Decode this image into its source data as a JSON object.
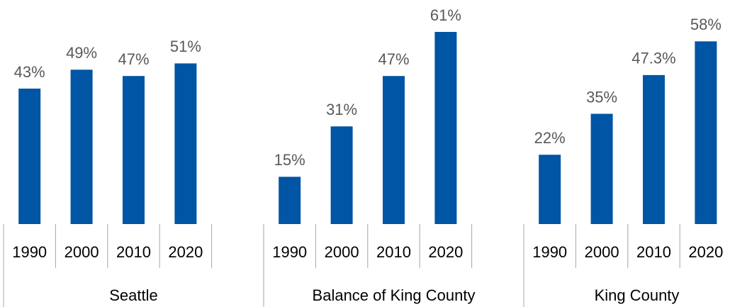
{
  "chart_data": {
    "type": "bar",
    "color": "#0055a4",
    "groups": [
      {
        "name": "Seattle",
        "categories": [
          "1990",
          "2000",
          "2010",
          "2020"
        ],
        "values": [
          43,
          49,
          47,
          51
        ],
        "value_labels": [
          "43%",
          "49%",
          "47%",
          "51%"
        ]
      },
      {
        "name": "Balance of King County",
        "categories": [
          "1990",
          "2000",
          "2010",
          "2020"
        ],
        "values": [
          15,
          31,
          47,
          61
        ],
        "value_labels": [
          "15%",
          "31%",
          "47%",
          "61%"
        ]
      },
      {
        "name": "King County",
        "categories": [
          "1990",
          "2000",
          "2010",
          "2020"
        ],
        "values": [
          22,
          35,
          47.3,
          58
        ],
        "value_labels": [
          "22%",
          "35%",
          "47.3%",
          "58%"
        ]
      }
    ]
  }
}
